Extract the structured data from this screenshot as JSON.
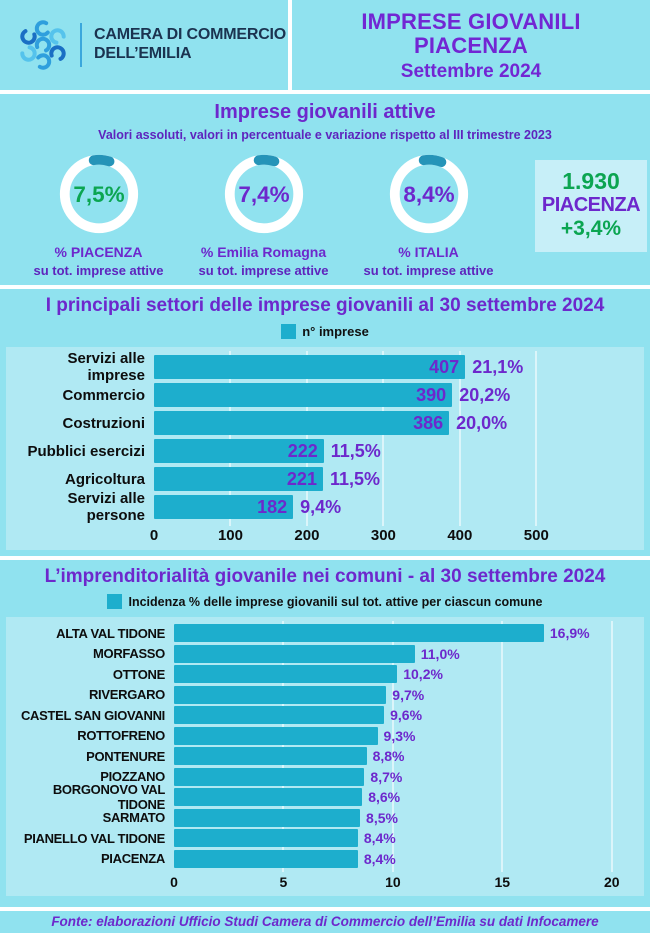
{
  "header": {
    "org_line1": "CAMERA DI COMMERCIO",
    "org_line2": "DELL’EMILIA",
    "title_line1": "IMPRESE GIOVANILI",
    "title_line2": "PIACENZA",
    "subtitle": "Settembre 2024"
  },
  "section_active": {
    "title": "Imprese giovanili attive",
    "subtitle": "Valori assoluti, valori in percentuale e variazione rispetto al III trimestre 2023",
    "donuts": [
      {
        "value": "7,5%",
        "pct": 7.5,
        "value_color": "#0ba551",
        "label": "%  PIACENZA",
        "sublabel": "su tot. imprese attive"
      },
      {
        "value": "7,4%",
        "pct": 7.4,
        "value_color": "#6d28cc",
        "label": "%  Emilia Romagna",
        "sublabel": "su tot. imprese attive"
      },
      {
        "value": "8,4%",
        "pct": 8.4,
        "value_color": "#6d28cc",
        "label": "%  ITALIA",
        "sublabel": "su tot. imprese attive"
      }
    ],
    "highlight_box": {
      "value": "1.930",
      "label": "PIACENZA",
      "change": "+3,4%"
    }
  },
  "chart_data": [
    {
      "type": "bar",
      "orientation": "horizontal",
      "title": "I principali settori  delle imprese giovanili  al 30 settembre  2024",
      "legend": "n° imprese",
      "categories": [
        "Servizi alle imprese",
        "Commercio",
        "Costruzioni",
        "Pubblici esercizi",
        "Agricoltura",
        "Servizi alle persone"
      ],
      "values": [
        407,
        390,
        386,
        222,
        221,
        182
      ],
      "value_labels": [
        "407",
        "390",
        "386",
        "222",
        "221",
        "182"
      ],
      "pct_labels": [
        "21,1%",
        "20,2%",
        "20,0%",
        "11,5%",
        "11,5%",
        "9,4%"
      ],
      "xlim": [
        0,
        633
      ],
      "ticks": [
        0,
        100,
        200,
        300,
        400,
        500
      ],
      "grid": true,
      "legend_position": "top"
    },
    {
      "type": "bar",
      "orientation": "horizontal",
      "title": "L’imprenditorialità giovanile nei comuni  - al 30 settembre 2024",
      "legend": "Incidenza % delle imprese giovanili sul tot. attive per ciascun comune",
      "categories": [
        "ALTA VAL TIDONE",
        "MORFASSO",
        "OTTONE",
        "RIVERGARO",
        "CASTEL SAN GIOVANNI",
        "ROTTOFRENO",
        "PONTENURE",
        "PIOZZANO",
        "BORGONOVO VAL TIDONE",
        "SARMATO",
        "PIANELLO VAL TIDONE",
        "PIACENZA"
      ],
      "values": [
        16.9,
        11.0,
        10.2,
        9.7,
        9.6,
        9.3,
        8.8,
        8.7,
        8.6,
        8.5,
        8.4,
        8.4
      ],
      "pct_labels": [
        "16,9%",
        "11,0%",
        "10,2%",
        "9,7%",
        "9,6%",
        "9,3%",
        "8,8%",
        "8,7%",
        "8,6%",
        "8,5%",
        "8,4%",
        "8,4%"
      ],
      "xlim": [
        0,
        21.2
      ],
      "ticks": [
        0,
        5,
        10,
        15,
        20
      ],
      "grid": true,
      "legend_position": "top"
    }
  ],
  "footer": {
    "source": "Fonte: elaborazioni Ufficio Studi Camera di Commercio dell’Emilia su dati Infocamere"
  },
  "colors": {
    "background": "#90e2ef",
    "panel": "#b0e9f3",
    "bar": "#1daecd",
    "donut_ring": "#ffffff",
    "donut_arc": "#2594b8",
    "purple": "#6d28cc",
    "green": "#0ba551",
    "navy": "#1b3350",
    "highlight_box_bg": "#c7eff8"
  }
}
